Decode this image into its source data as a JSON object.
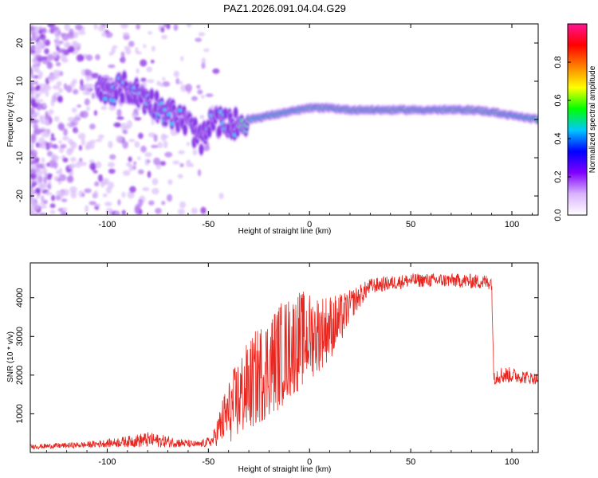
{
  "title": "PAZ1.2026.091.04.04.G29",
  "chart_data": [
    {
      "type": "heatmap",
      "xlabel": "Height of straight line (km)",
      "ylabel": "Frequency (Hz)",
      "xlim": [
        -138,
        113
      ],
      "ylim": [
        -25,
        25
      ],
      "xticks": [
        -100,
        -50,
        0,
        50,
        100
      ],
      "xtick_labels": [
        "-100",
        "-50",
        "0",
        "50",
        "100"
      ],
      "yticks": [
        -20,
        -10,
        0,
        10,
        20
      ],
      "ytick_labels": [
        "-20",
        "-10",
        "0",
        "10",
        "20"
      ],
      "ridge": [
        {
          "x": -100,
          "f": 7.5
        },
        {
          "x": -90,
          "f": 8.5
        },
        {
          "x": -80,
          "f": 5
        },
        {
          "x": -70,
          "f": 2
        },
        {
          "x": -60,
          "f": -1
        },
        {
          "x": -53,
          "f": -6
        },
        {
          "x": -48,
          "f": 0
        },
        {
          "x": -40,
          "f": -1.5
        },
        {
          "x": -30,
          "f": 0
        },
        {
          "x": -20,
          "f": 1
        },
        {
          "x": -10,
          "f": 2
        },
        {
          "x": 0,
          "f": 3
        },
        {
          "x": 10,
          "f": 3
        },
        {
          "x": 20,
          "f": 2.5
        },
        {
          "x": 40,
          "f": 2.5
        },
        {
          "x": 60,
          "f": 2.5
        },
        {
          "x": 80,
          "f": 2.5
        },
        {
          "x": 90,
          "f": 2
        },
        {
          "x": 100,
          "f": 1
        },
        {
          "x": 113,
          "f": 0
        }
      ],
      "colorbar": {
        "label": "Normalized spectral amplitude",
        "ticks": [
          0.0,
          0.2,
          0.4,
          0.6,
          0.8
        ],
        "tick_labels": [
          "0.0",
          "0.2",
          "0.4",
          "0.6",
          "0.8"
        ],
        "range": [
          0,
          1
        ],
        "colors": [
          "#ffffff",
          "#d9b3ff",
          "#8000ff",
          "#0000ff",
          "#00c8ff",
          "#00ff00",
          "#ffff00",
          "#ff8000",
          "#ff0000",
          "#ff1493"
        ]
      }
    },
    {
      "type": "line",
      "xlabel": "Height of straight line (km)",
      "ylabel": "SNR (10 * v/v)",
      "xlim": [
        -138,
        113
      ],
      "ylim": [
        0,
        4900
      ],
      "xticks": [
        -100,
        -50,
        0,
        50,
        100
      ],
      "xtick_labels": [
        "-100",
        "-50",
        "0",
        "50",
        "100"
      ],
      "yticks": [
        1000,
        2000,
        3000,
        4000
      ],
      "ytick_labels": [
        "1000",
        "2000",
        "3000",
        "4000"
      ],
      "line_color": "#e8261f",
      "envelope": [
        {
          "x": -138,
          "mean": 150,
          "noise": 60
        },
        {
          "x": -110,
          "mean": 200,
          "noise": 80
        },
        {
          "x": -95,
          "mean": 260,
          "noise": 120
        },
        {
          "x": -80,
          "mean": 330,
          "noise": 200
        },
        {
          "x": -70,
          "mean": 280,
          "noise": 150
        },
        {
          "x": -55,
          "mean": 200,
          "noise": 80
        },
        {
          "x": -48,
          "mean": 300,
          "noise": 150
        },
        {
          "x": -42,
          "mean": 900,
          "noise": 700
        },
        {
          "x": -35,
          "mean": 1400,
          "noise": 1100
        },
        {
          "x": -25,
          "mean": 2000,
          "noise": 1300
        },
        {
          "x": -15,
          "mean": 2500,
          "noise": 1400
        },
        {
          "x": -5,
          "mean": 2900,
          "noise": 1300
        },
        {
          "x": 5,
          "mean": 3100,
          "noise": 1000
        },
        {
          "x": 15,
          "mean": 3400,
          "noise": 700
        },
        {
          "x": 20,
          "mean": 3800,
          "noise": 400
        },
        {
          "x": 30,
          "mean": 4300,
          "noise": 200
        },
        {
          "x": 50,
          "mean": 4450,
          "noise": 180
        },
        {
          "x": 70,
          "mean": 4450,
          "noise": 180
        },
        {
          "x": 90,
          "mean": 4400,
          "noise": 200
        },
        {
          "x": 91,
          "mean": 2000,
          "noise": 250
        },
        {
          "x": 100,
          "mean": 2000,
          "noise": 200
        },
        {
          "x": 113,
          "mean": 1900,
          "noise": 150
        }
      ]
    }
  ]
}
